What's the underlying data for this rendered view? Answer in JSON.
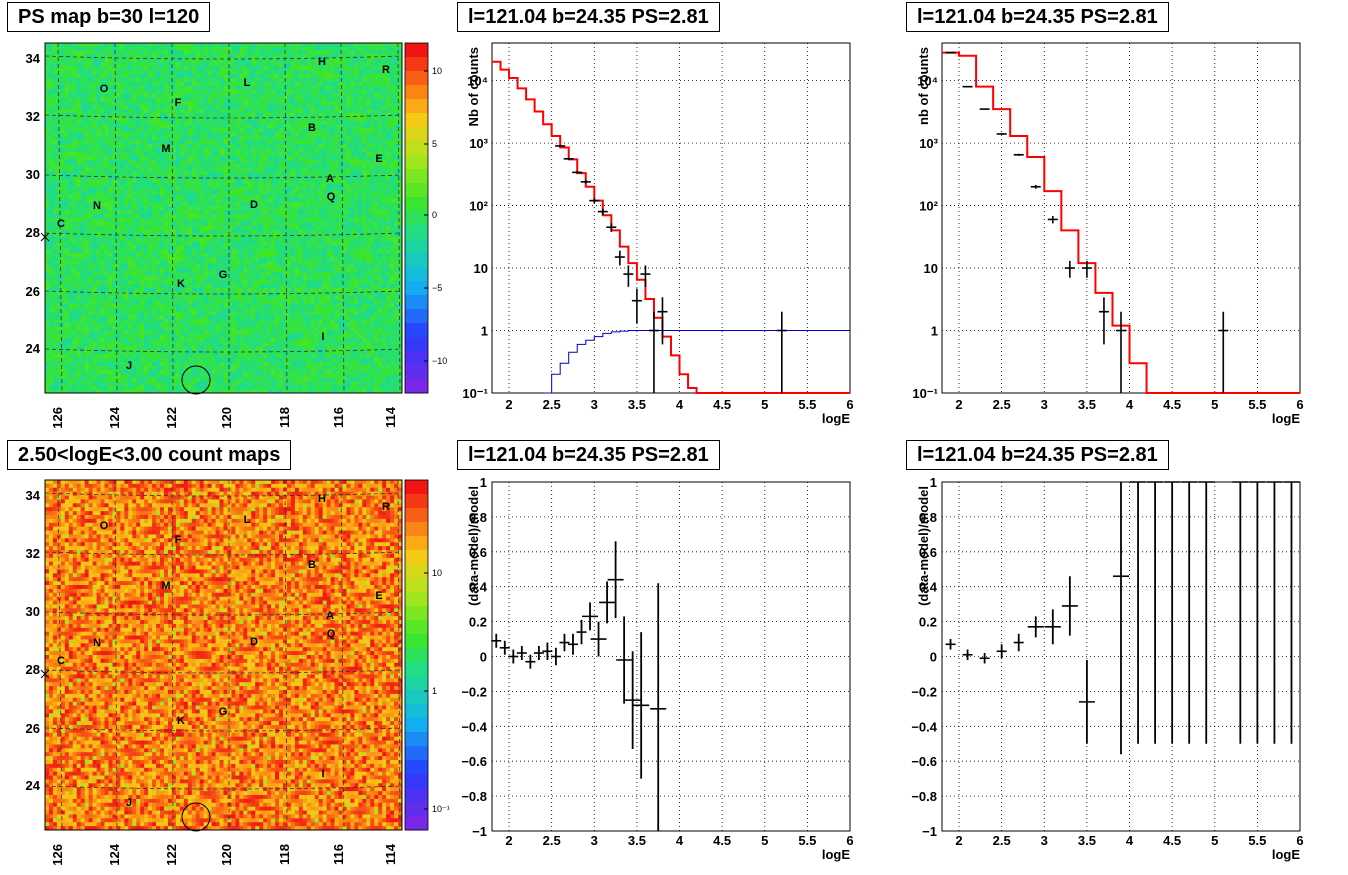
{
  "chart_data": [
    {
      "type": "heatmap",
      "title": "PS map b=30 l=120",
      "xticks": [
        "126",
        "124",
        "122",
        "120",
        "118",
        "116",
        "114"
      ],
      "yticks": [
        "34",
        "32",
        "30",
        "28",
        "26",
        "24"
      ],
      "colorbar_ticks": [
        "10",
        "5",
        "0",
        "−5",
        "−10"
      ],
      "colorscale": "rainbow",
      "base_color": "#33dd44",
      "sources": [
        "O",
        "L",
        "H",
        "R",
        "F",
        "B",
        "M",
        "E",
        "A",
        "Q",
        "N",
        "D",
        "C",
        "K",
        "G",
        "I",
        "J"
      ]
    },
    {
      "type": "line",
      "title": "l=121.04 b=24.35 PS=2.81",
      "xlabel": "logE",
      "ylabel": "Nb of counts",
      "xlim": [
        1.8,
        6
      ],
      "ylim": [
        0.1,
        40000
      ],
      "yscale": "log",
      "xticks": [
        "2",
        "2.5",
        "3",
        "3.5",
        "4",
        "4.5",
        "5",
        "5.5",
        "6"
      ],
      "yticks": [
        "10⁴",
        "10³",
        "10²",
        "10",
        "1",
        "10⁻¹"
      ],
      "series": [
        {
          "color": "#ff0000",
          "x": [
            1.8,
            1.9,
            2.0,
            2.1,
            2.2,
            2.3,
            2.4,
            2.5,
            2.6,
            2.7,
            2.8,
            2.9,
            3.0,
            3.1,
            3.2,
            3.3,
            3.4,
            3.5,
            3.6,
            3.7,
            3.8,
            3.9,
            4.0,
            4.1,
            4.2,
            4.3,
            6.0
          ],
          "y": [
            20000,
            15000,
            11000,
            7500,
            5000,
            3200,
            2000,
            1300,
            850,
            550,
            330,
            200,
            120,
            70,
            40,
            22,
            12,
            6.5,
            3.2,
            1.6,
            0.8,
            0.4,
            0.2,
            0.12,
            0.1,
            0.1,
            0.1
          ]
        },
        {
          "color": "#0000cc",
          "x": [
            2.4,
            2.5,
            2.6,
            2.7,
            2.8,
            2.9,
            3.0,
            3.1,
            3.2,
            3.3,
            3.4,
            3.5,
            6.0
          ],
          "y": [
            0.1,
            0.2,
            0.3,
            0.45,
            0.6,
            0.7,
            0.8,
            0.9,
            0.95,
            0.98,
            1.0,
            1.0,
            1.0
          ]
        },
        {
          "color": "#000000",
          "x": [
            2.6,
            2.7,
            2.8,
            2.9,
            3.0,
            3.1,
            3.2,
            3.3,
            3.4,
            3.5,
            3.6,
            3.7,
            3.8,
            5.2
          ],
          "y": [
            900,
            560,
            340,
            240,
            120,
            80,
            45,
            15,
            8,
            3,
            8,
            1,
            2,
            1
          ],
          "yerr": [
            30,
            24,
            18,
            15,
            11,
            9,
            7,
            4,
            3,
            1.7,
            3,
            1,
            1.4,
            1
          ]
        }
      ]
    },
    {
      "type": "line",
      "title": "l=121.04 b=24.35 PS=2.81",
      "xlabel": "logE",
      "ylabel": "nb of counts",
      "xlim": [
        1.8,
        6
      ],
      "ylim": [
        0.1,
        40000
      ],
      "yscale": "log",
      "xticks": [
        "2",
        "2.5",
        "3",
        "3.5",
        "4",
        "4.5",
        "5",
        "5.5",
        "6"
      ],
      "yticks": [
        "10⁴",
        "10³",
        "10²",
        "10",
        "1",
        "10⁻¹"
      ],
      "series": [
        {
          "color": "#ff0000",
          "x": [
            1.8,
            2.0,
            2.2,
            2.4,
            2.6,
            2.8,
            3.0,
            3.2,
            3.4,
            3.6,
            3.8,
            4.0,
            4.2,
            4.4,
            6.0
          ],
          "y": [
            28000,
            25000,
            8000,
            3500,
            1300,
            600,
            170,
            40,
            12,
            4,
            1.2,
            0.3,
            0.1,
            0.1,
            0.1
          ]
        },
        {
          "color": "#000000",
          "x": [
            1.9,
            2.1,
            2.3,
            2.5,
            2.7,
            2.9,
            3.1,
            3.3,
            3.5,
            3.7,
            3.9,
            5.1
          ],
          "y": [
            28000,
            8000,
            3500,
            1400,
            650,
            200,
            60,
            10,
            10,
            2,
            1,
            1
          ],
          "yerr": [
            170,
            90,
            60,
            37,
            25,
            14,
            8,
            3,
            3,
            1.4,
            1,
            1
          ]
        }
      ]
    },
    {
      "type": "heatmap",
      "title": "2.50<logE<3.00 count maps",
      "xticks": [
        "126",
        "124",
        "122",
        "120",
        "118",
        "116",
        "114"
      ],
      "yticks": [
        "34",
        "32",
        "30",
        "28",
        "26",
        "24"
      ],
      "colorbar_ticks": [
        "10",
        "1",
        "10⁻¹"
      ],
      "colorscale": "rainbow-log",
      "base_color": "#ee6a22",
      "sources": [
        "O",
        "L",
        "H",
        "R",
        "F",
        "B",
        "M",
        "E",
        "A",
        "Q",
        "N",
        "D",
        "C",
        "K",
        "G",
        "I",
        "J"
      ]
    },
    {
      "type": "scatter",
      "title": "l=121.04 b=24.35 PS=2.81",
      "xlabel": "logE",
      "ylabel": "(data-model)/model",
      "xlim": [
        1.8,
        6
      ],
      "ylim": [
        -1,
        1
      ],
      "xticks": [
        "2",
        "2.5",
        "3",
        "3.5",
        "4",
        "4.5",
        "5",
        "5.5",
        "6"
      ],
      "yticks": [
        "1",
        "0.8",
        "0.6",
        "0.4",
        "0.2",
        "0",
        "−0.2",
        "−0.4",
        "−0.6",
        "−0.8",
        "−1"
      ],
      "points": [
        {
          "x": 1.85,
          "y": 0.09,
          "yerr": 0.04
        },
        {
          "x": 1.95,
          "y": 0.05,
          "yerr": 0.04
        },
        {
          "x": 2.05,
          "y": 0.0,
          "yerr": 0.04
        },
        {
          "x": 2.15,
          "y": 0.02,
          "yerr": 0.04
        },
        {
          "x": 2.25,
          "y": -0.03,
          "yerr": 0.04
        },
        {
          "x": 2.35,
          "y": 0.02,
          "yerr": 0.04
        },
        {
          "x": 2.45,
          "y": 0.03,
          "yerr": 0.05
        },
        {
          "x": 2.55,
          "y": 0.0,
          "yerr": 0.05
        },
        {
          "x": 2.65,
          "y": 0.08,
          "yerr": 0.05
        },
        {
          "x": 2.75,
          "y": 0.07,
          "yerr": 0.06
        },
        {
          "x": 2.85,
          "y": 0.14,
          "yerr": 0.07
        },
        {
          "x": 2.95,
          "y": 0.23,
          "yerr": 0.08
        },
        {
          "x": 3.05,
          "y": 0.1,
          "yerr": 0.1
        },
        {
          "x": 3.15,
          "y": 0.31,
          "yerr": 0.12
        },
        {
          "x": 3.25,
          "y": 0.44,
          "yerr": 0.22
        },
        {
          "x": 3.35,
          "y": -0.02,
          "yerr": 0.25
        },
        {
          "x": 3.45,
          "y": -0.25,
          "yerr": 0.28
        },
        {
          "x": 3.55,
          "y": -0.28,
          "yerr": 0.42
        },
        {
          "x": 3.75,
          "y": -0.3,
          "yerr": 0.72
        }
      ]
    },
    {
      "type": "scatter",
      "title": "l=121.04 b=24.35 PS=2.81",
      "xlabel": "logE",
      "ylabel": "(data-model)/model",
      "xlim": [
        1.8,
        6
      ],
      "ylim": [
        -1,
        1
      ],
      "xticks": [
        "2",
        "2.5",
        "3",
        "3.5",
        "4",
        "4.5",
        "5",
        "5.5",
        "6"
      ],
      "yticks": [
        "1",
        "0.8",
        "0.6",
        "0.4",
        "0.2",
        "0",
        "−0.2",
        "−0.4",
        "−0.6",
        "−0.8",
        "−1"
      ],
      "points": [
        {
          "x": 1.9,
          "y": 0.07,
          "yerr": 0.03
        },
        {
          "x": 2.1,
          "y": 0.01,
          "yerr": 0.03
        },
        {
          "x": 2.3,
          "y": -0.01,
          "yerr": 0.03
        },
        {
          "x": 2.5,
          "y": 0.03,
          "yerr": 0.04
        },
        {
          "x": 2.7,
          "y": 0.08,
          "yerr": 0.05
        },
        {
          "x": 2.9,
          "y": 0.17,
          "yerr": 0.06
        },
        {
          "x": 3.1,
          "y": 0.17,
          "yerr": 0.1
        },
        {
          "x": 3.3,
          "y": 0.29,
          "yerr": 0.17
        },
        {
          "x": 3.5,
          "y": -0.26,
          "yerr": 0.24
        },
        {
          "x": 3.9,
          "y": 0.46,
          "yerr": 1.02
        },
        {
          "x": 4.1,
          "y": 1.0,
          "yerr": 1.5
        },
        {
          "x": 4.3,
          "y": 1.0,
          "yerr": 1.5
        },
        {
          "x": 4.5,
          "y": 1.0,
          "yerr": 1.5
        },
        {
          "x": 4.7,
          "y": 1.0,
          "yerr": 1.5
        },
        {
          "x": 4.9,
          "y": 1.0,
          "yerr": 1.5
        },
        {
          "x": 5.3,
          "y": 1.0,
          "yerr": 1.5
        },
        {
          "x": 5.5,
          "y": 1.0,
          "yerr": 1.5
        },
        {
          "x": 5.7,
          "y": 1.0,
          "yerr": 1.5
        },
        {
          "x": 5.9,
          "y": 1.0,
          "yerr": 1.5
        }
      ]
    }
  ]
}
